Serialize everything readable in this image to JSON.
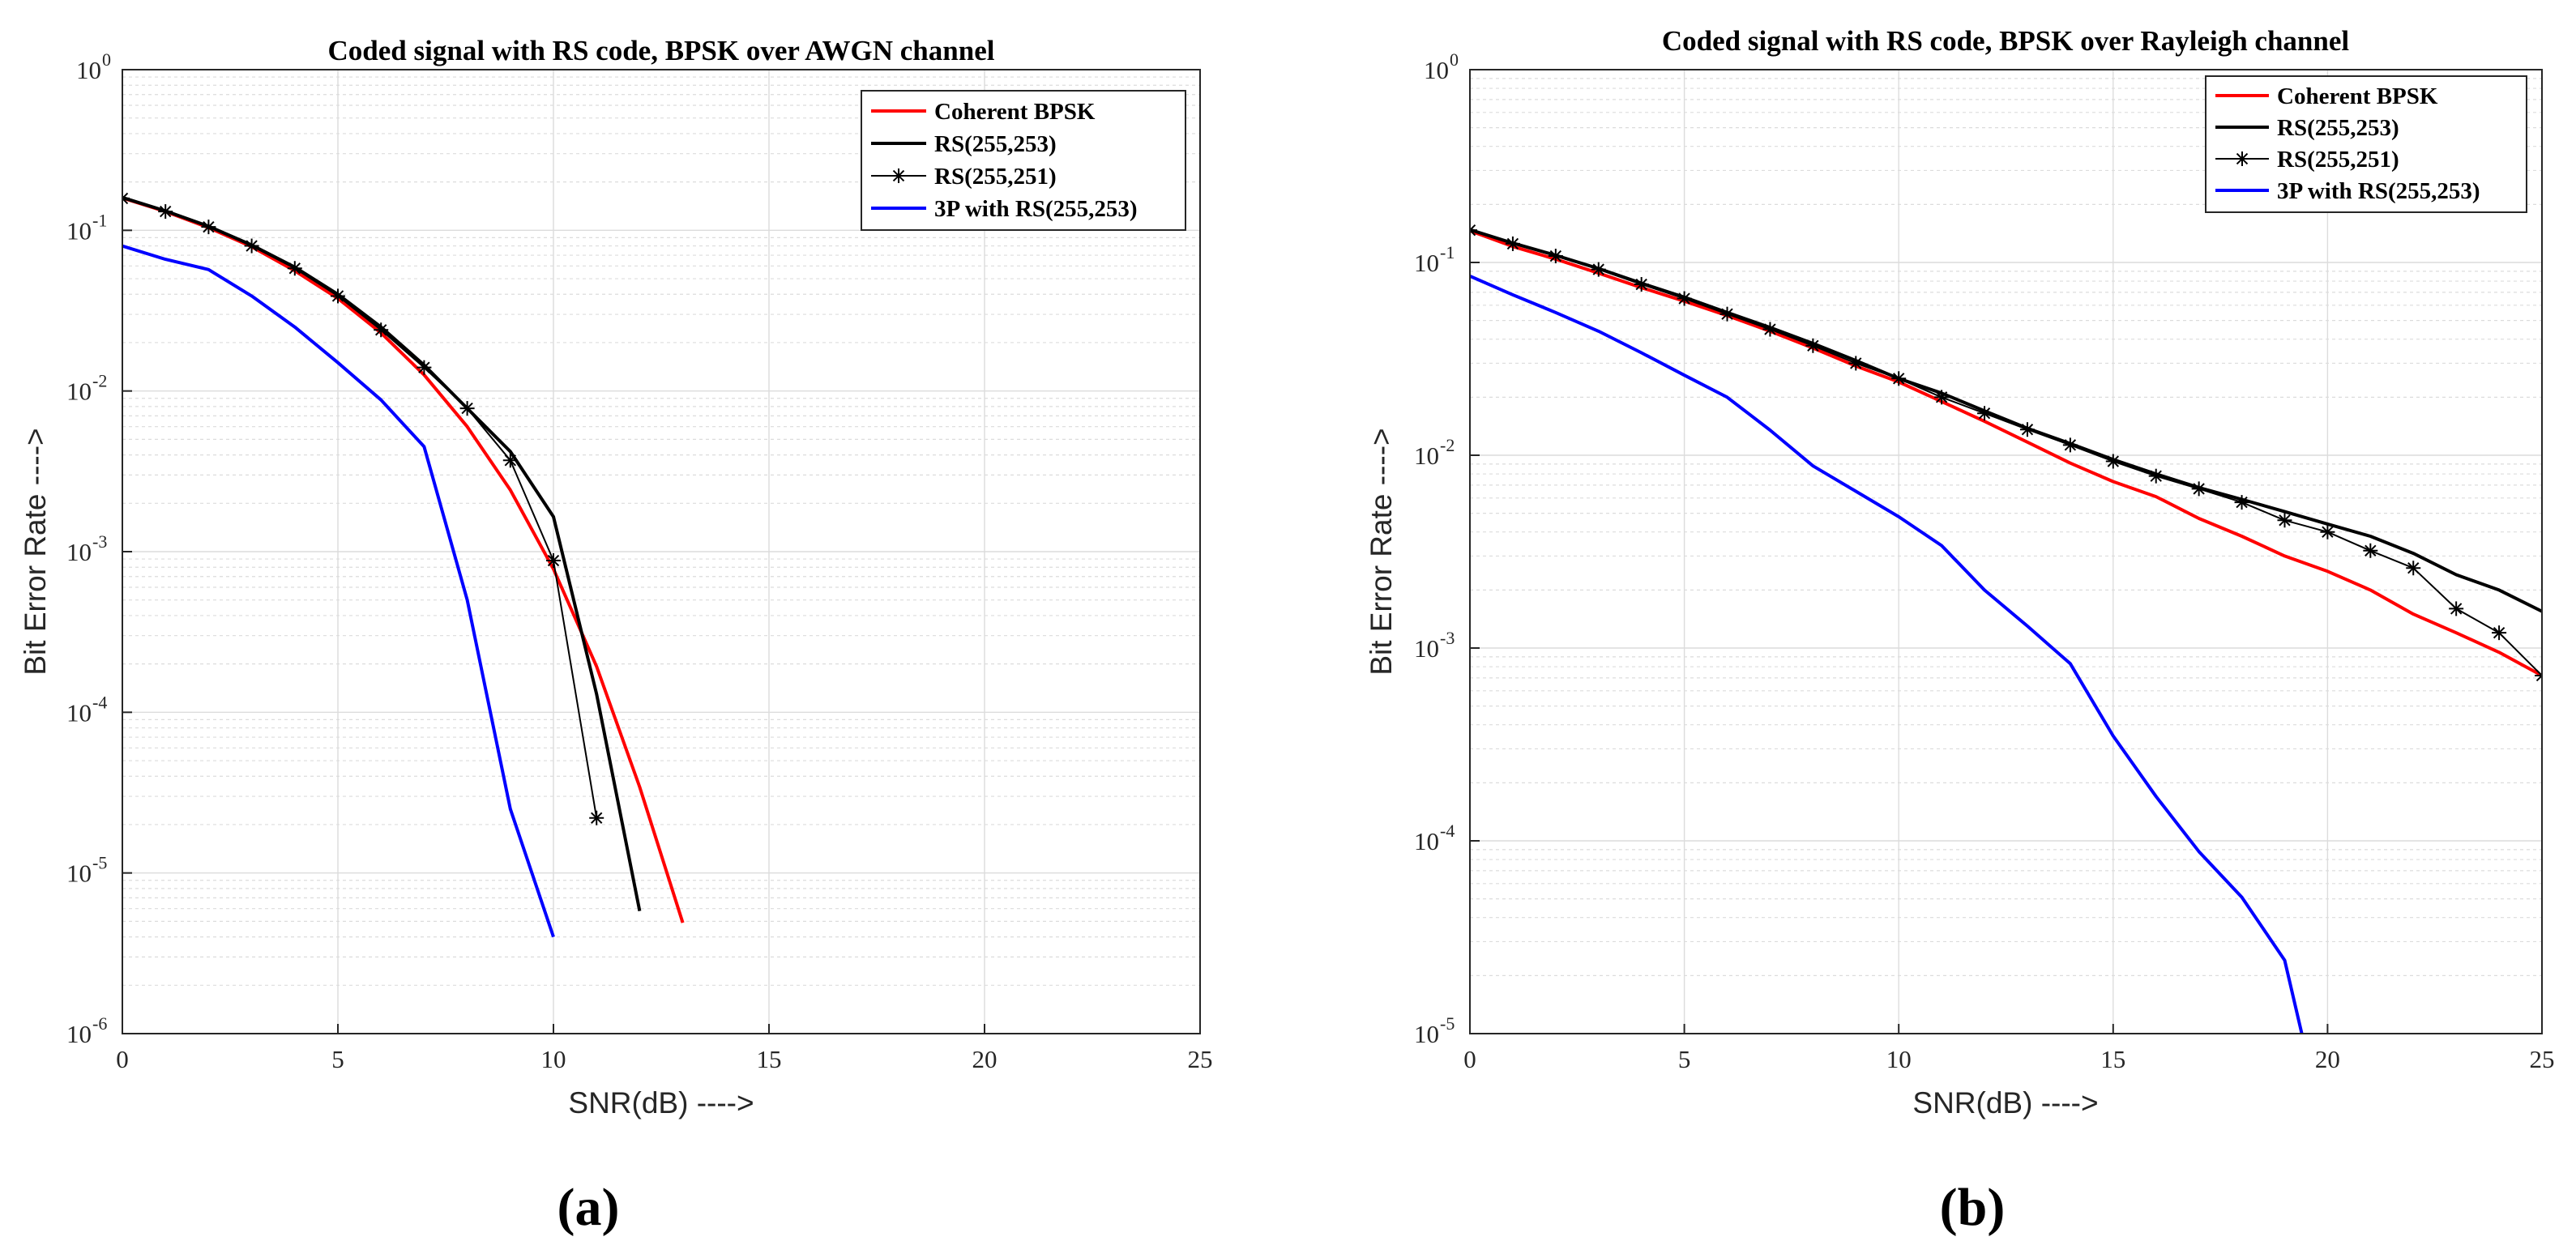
{
  "chart_data": [
    {
      "type": "line",
      "panel_label": "(a)",
      "title": "Coded signal with RS code, BPSK over AWGN channel",
      "xlabel": "SNR(dB) ---->",
      "ylabel": "Bit Error Rate ---->",
      "xlim": [
        0,
        25
      ],
      "ylim": [
        1e-06,
        1
      ],
      "yscale": "log",
      "grid": true,
      "legend_position": "top-right",
      "xticks": [
        0,
        5,
        10,
        15,
        20,
        25
      ],
      "yticks": [
        {
          "base": "10",
          "exp": "0",
          "value": 1
        },
        {
          "base": "10",
          "exp": "-1",
          "value": 0.1
        },
        {
          "base": "10",
          "exp": "-2",
          "value": 0.01
        },
        {
          "base": "10",
          "exp": "-3",
          "value": 0.001
        },
        {
          "base": "10",
          "exp": "-4",
          "value": 0.0001
        },
        {
          "base": "10",
          "exp": "-5",
          "value": 1e-05
        },
        {
          "base": "10",
          "exp": "-6",
          "value": 1e-06
        }
      ],
      "series": [
        {
          "name": "Coherent BPSK",
          "color": "#ff0000",
          "width": 4,
          "marker": "",
          "x": [
            0,
            1,
            2,
            3,
            4,
            5,
            6,
            7,
            8,
            9,
            10,
            11,
            12,
            13
          ],
          "y": [
            0.159,
            0.131,
            0.104,
            0.079,
            0.056,
            0.0377,
            0.023,
            0.0126,
            0.006,
            0.00242,
            0.00078,
            0.000193,
            3.43e-05,
            4.9e-06
          ]
        },
        {
          "name": "RS(255,253)",
          "color": "#000000",
          "width": 4,
          "marker": "",
          "x": [
            0,
            1,
            2,
            3,
            4,
            5,
            6,
            7,
            8,
            9,
            10,
            11,
            12
          ],
          "y": [
            0.16,
            0.132,
            0.106,
            0.081,
            0.059,
            0.04,
            0.025,
            0.0145,
            0.0078,
            0.0042,
            0.00165,
            0.00013,
            5.8e-06
          ]
        },
        {
          "name": "RS(255,251)",
          "color": "#000000",
          "width": 2,
          "marker": "star",
          "x": [
            0,
            1,
            2,
            3,
            4,
            5,
            6,
            7,
            8,
            9,
            10,
            11
          ],
          "y": [
            0.158,
            0.131,
            0.105,
            0.08,
            0.058,
            0.039,
            0.024,
            0.014,
            0.0078,
            0.0037,
            0.00088,
            2.2e-05
          ]
        },
        {
          "name": "3P with RS(255,253)",
          "color": "#0000ff",
          "width": 4,
          "marker": "",
          "x": [
            0,
            1,
            2,
            3,
            4,
            5,
            6,
            7,
            8,
            9,
            10
          ],
          "y": [
            0.08,
            0.066,
            0.057,
            0.039,
            0.025,
            0.015,
            0.0088,
            0.0045,
            0.0005,
            2.5e-05,
            4e-06
          ]
        }
      ]
    },
    {
      "type": "line",
      "panel_label": "(b)",
      "title": "Coded signal with RS code, BPSK over Rayleigh channel",
      "xlabel": "SNR(dB) ---->",
      "ylabel": "Bit Error Rate ---->",
      "xlim": [
        0,
        25
      ],
      "ylim": [
        1e-05,
        1
      ],
      "yscale": "log",
      "grid": true,
      "legend_position": "top-right",
      "xticks": [
        0,
        5,
        10,
        15,
        20,
        25
      ],
      "yticks": [
        {
          "base": "10",
          "exp": "0",
          "value": 1
        },
        {
          "base": "10",
          "exp": "-1",
          "value": 0.1
        },
        {
          "base": "10",
          "exp": "-2",
          "value": 0.01
        },
        {
          "base": "10",
          "exp": "-3",
          "value": 0.001
        },
        {
          "base": "10",
          "exp": "-4",
          "value": 0.0001
        },
        {
          "base": "10",
          "exp": "-5",
          "value": 1e-05
        }
      ],
      "series": [
        {
          "name": "Coherent BPSK",
          "color": "#ff0000",
          "width": 4,
          "marker": "",
          "x": [
            0,
            1,
            2,
            3,
            4,
            5,
            6,
            7,
            8,
            9,
            10,
            11,
            12,
            13,
            14,
            15,
            16,
            17,
            18,
            19,
            20,
            21,
            22,
            23,
            24,
            25
          ],
          "y": [
            0.146,
            0.121,
            0.104,
            0.088,
            0.074,
            0.063,
            0.053,
            0.044,
            0.036,
            0.029,
            0.024,
            0.019,
            0.015,
            0.0117,
            0.0091,
            0.0073,
            0.0061,
            0.0047,
            0.0038,
            0.003,
            0.0025,
            0.002,
            0.0015,
            0.0012,
            0.00095,
            0.00072
          ]
        },
        {
          "name": "RS(255,253)",
          "color": "#000000",
          "width": 4,
          "marker": "",
          "x": [
            0,
            1,
            2,
            3,
            4,
            5,
            6,
            7,
            8,
            9,
            10,
            11,
            12,
            13,
            14,
            15,
            16,
            17,
            18,
            19,
            20,
            21,
            22,
            23,
            24,
            25
          ],
          "y": [
            0.148,
            0.126,
            0.109,
            0.093,
            0.078,
            0.066,
            0.055,
            0.046,
            0.038,
            0.031,
            0.025,
            0.021,
            0.017,
            0.0138,
            0.0115,
            0.0095,
            0.008,
            0.0068,
            0.0059,
            0.0051,
            0.0044,
            0.0038,
            0.0031,
            0.0024,
            0.002,
            0.00155
          ]
        },
        {
          "name": "RS(255,251)",
          "color": "#000000",
          "width": 2,
          "marker": "star",
          "x": [
            0,
            1,
            2,
            3,
            4,
            5,
            6,
            7,
            8,
            9,
            10,
            11,
            12,
            13,
            14,
            15,
            16,
            17,
            18,
            19,
            20,
            21,
            22,
            23,
            24,
            25
          ],
          "y": [
            0.147,
            0.125,
            0.108,
            0.092,
            0.077,
            0.065,
            0.054,
            0.045,
            0.037,
            0.03,
            0.025,
            0.02,
            0.0165,
            0.0136,
            0.0113,
            0.0093,
            0.0078,
            0.0067,
            0.0057,
            0.0046,
            0.004,
            0.0032,
            0.0026,
            0.0016,
            0.0012,
            0.00072
          ]
        },
        {
          "name": "3P with RS(255,253)",
          "color": "#0000ff",
          "width": 4,
          "marker": "",
          "x": [
            0,
            1,
            2,
            3,
            4,
            5,
            6,
            7,
            8,
            9,
            10,
            11,
            12,
            13,
            14,
            15,
            16,
            17,
            18,
            19,
            19.4
          ],
          "y": [
            0.085,
            0.068,
            0.055,
            0.044,
            0.034,
            0.026,
            0.02,
            0.0135,
            0.0088,
            0.0065,
            0.0048,
            0.0034,
            0.002,
            0.0013,
            0.00083,
            0.00035,
            0.00017,
            8.8e-05,
            5.1e-05,
            2.4e-05,
            1e-05
          ]
        }
      ]
    }
  ]
}
